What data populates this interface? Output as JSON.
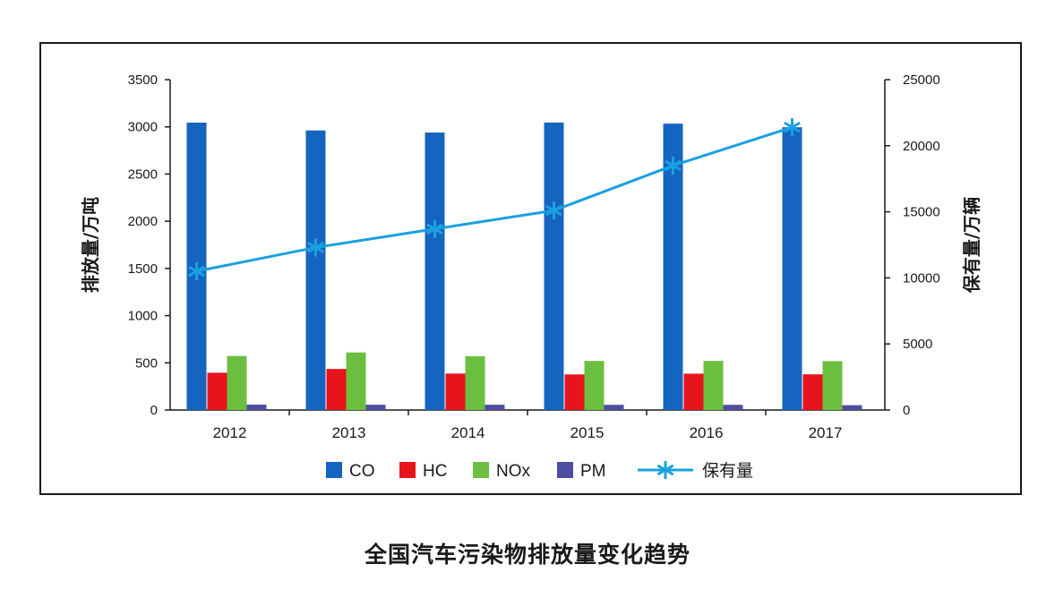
{
  "chart_data": {
    "type": "bar",
    "categories": [
      "2012",
      "2013",
      "2014",
      "2015",
      "2016",
      "2017"
    ],
    "series": [
      {
        "name": "CO",
        "type": "bar",
        "axis": "left",
        "color": "#1565c0",
        "values": [
          3045,
          2962,
          2940,
          3046,
          3034,
          2996
        ]
      },
      {
        "name": "HC",
        "type": "bar",
        "axis": "left",
        "color": "#e8141c",
        "values": [
          395,
          435,
          386,
          377,
          385,
          378
        ]
      },
      {
        "name": "NOx",
        "type": "bar",
        "axis": "left",
        "color": "#6bbf3e",
        "values": [
          572,
          610,
          570,
          520,
          520,
          518
        ]
      },
      {
        "name": "PM",
        "type": "bar",
        "axis": "left",
        "color": "#4e4ea0",
        "values": [
          57,
          56,
          56,
          55,
          55,
          51
        ]
      },
      {
        "name": "保有量",
        "type": "line",
        "axis": "right",
        "color": "#1aa0e0",
        "values": [
          10500,
          12300,
          13700,
          15100,
          18500,
          21400
        ]
      }
    ],
    "ylabel_left": "排放量/万吨",
    "ylabel_right": "保有量/万辆",
    "ylim_left": [
      0,
      3500
    ],
    "yticks_left": [
      0,
      500,
      1000,
      1500,
      2000,
      2500,
      3000,
      3500
    ],
    "ylim_right": [
      0,
      25000
    ],
    "yticks_right": [
      0,
      5000,
      10000,
      15000,
      20000,
      25000
    ],
    "legend_position": "bottom",
    "grid": false
  },
  "caption": "全国汽车污染物排放量变化趋势"
}
